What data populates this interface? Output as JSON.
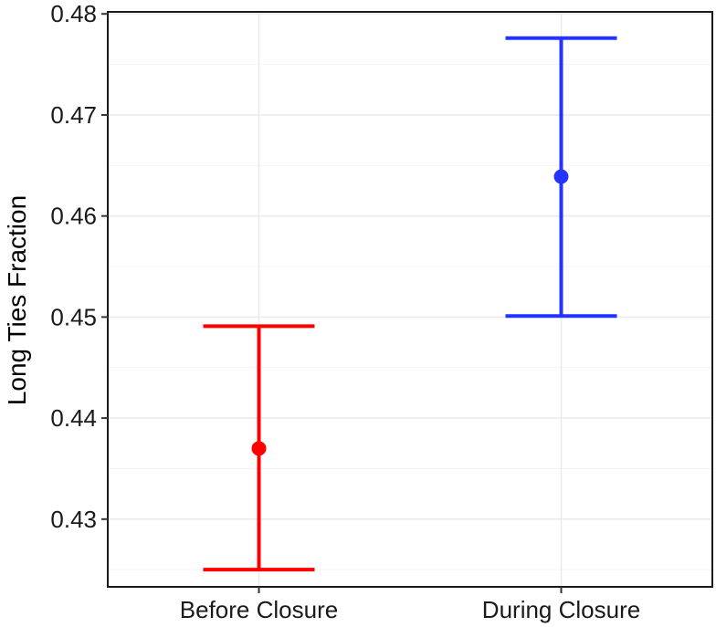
{
  "chart_data": {
    "type": "errorbar",
    "title": "",
    "xlabel": "",
    "ylabel": "Long Ties Fraction",
    "ylim": [
      0.4233,
      0.4802
    ],
    "yticks": [
      0.43,
      0.44,
      0.45,
      0.46,
      0.47,
      0.48
    ],
    "ytick_labels": [
      "0.43",
      "0.44",
      "0.45",
      "0.46",
      "0.47",
      "0.48"
    ],
    "grid": true,
    "legend": "none",
    "categories": [
      "Before Closure",
      "During Closure"
    ],
    "points": [
      {
        "category": "Before Closure",
        "value": 0.437,
        "lower": 0.425,
        "upper": 0.4491,
        "color": "#ff0000"
      },
      {
        "category": "During Closure",
        "value": 0.4639,
        "lower": 0.4501,
        "upper": 0.4776,
        "color": "#2433ff"
      }
    ]
  }
}
